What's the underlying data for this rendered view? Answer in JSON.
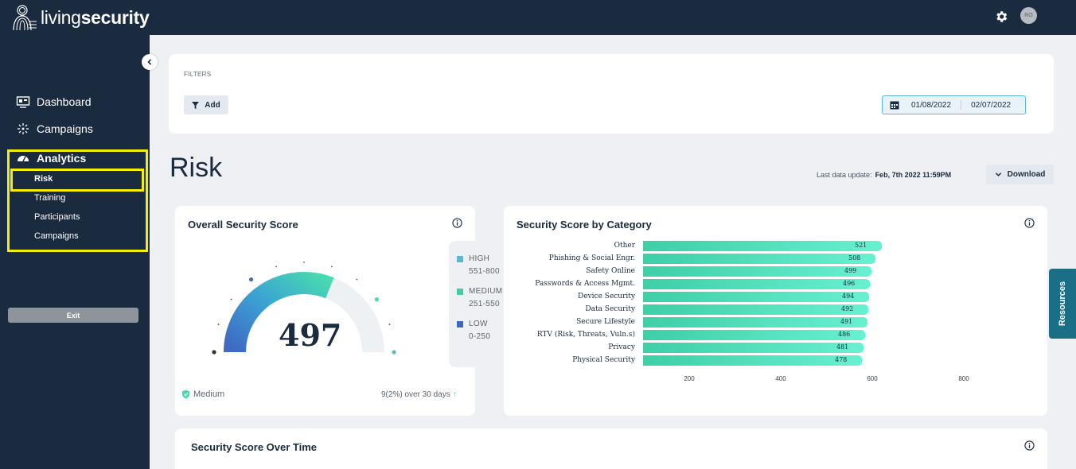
{
  "brand": {
    "name_light": "living",
    "name_bold": "security"
  },
  "header": {
    "avatar_initials": "RO",
    "settings_icon": "gear-icon"
  },
  "sidebar": {
    "items": [
      {
        "label": "Dashboard",
        "icon": "dashboard-icon"
      },
      {
        "label": "Campaigns",
        "icon": "campaigns-icon"
      },
      {
        "label": "Analytics",
        "icon": "gauge-icon"
      }
    ],
    "analytics_sub": [
      "Risk",
      "Training",
      "Participants",
      "Campaigns"
    ],
    "exit_label": "Exit",
    "highlight_color": "#f5ee0c"
  },
  "filters": {
    "label": "FILTERS",
    "add_label": "Add",
    "date_from": "01/08/2022",
    "date_to": "02/07/2022"
  },
  "page": {
    "title": "Risk",
    "last_update_label": "Last data update:",
    "last_update_value": "Feb, 7th 2022 11:59PM",
    "download_label": "Download"
  },
  "overall": {
    "title": "Overall Security Score",
    "score": "497",
    "score_value": 497,
    "score_max": 800,
    "level": "Medium",
    "trend": "9(2%) over 30 days"
  },
  "legend": [
    {
      "name": "HIGH",
      "range": "551-800",
      "color": "#58b9d6"
    },
    {
      "name": "MEDIUM",
      "range": "251-550",
      "color": "#3ecfa3"
    },
    {
      "name": "LOW",
      "range": "0-250",
      "color": "#3e69c3"
    }
  ],
  "category": {
    "title": "Security Score by Category",
    "chart_data": {
      "type": "bar",
      "orientation": "horizontal",
      "categories": [
        "Other",
        "Phishing & Social Engr.",
        "Safety Online",
        "Passwords & Access Mgmt.",
        "Device Security",
        "Data Security",
        "Secure Lifestyle",
        "RTV (Risk, Threats, Vuln.s)",
        "Privacy",
        "Physical Security"
      ],
      "values": [
        521,
        508,
        499,
        496,
        494,
        492,
        491,
        486,
        481,
        478
      ],
      "value_labels": [
        "521",
        "508",
        "499",
        "496",
        "494",
        "492",
        "491",
        "486",
        "481",
        "478"
      ],
      "x_ticks": [
        "200",
        "400",
        "600",
        "800"
      ],
      "xlim": [
        0,
        800
      ]
    }
  },
  "over_time": {
    "title": "Security Score Over Time"
  },
  "resources_label": "Resources"
}
